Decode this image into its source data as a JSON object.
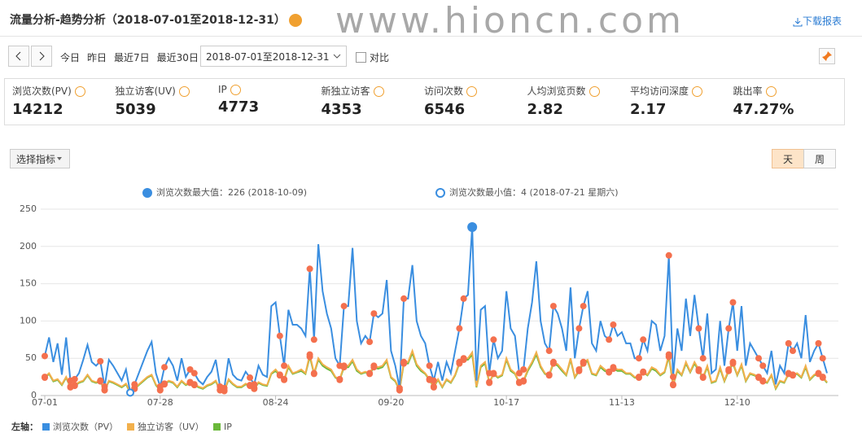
{
  "header": {
    "title": "流量分析-趋势分析（2018-07-01至2018-12-31）",
    "watermark": "www.hioncn.com",
    "download": "下载报表"
  },
  "toolbar": {
    "quick_ranges": [
      "今日",
      "昨日",
      "最近7日",
      "最近30日"
    ],
    "date_range": "2018-07-01至2018-12-31",
    "compare": "对比"
  },
  "metrics": [
    {
      "label": "浏览次数(PV)",
      "value": "14212"
    },
    {
      "label": "独立访客(UV)",
      "value": "5039"
    },
    {
      "label": "IP",
      "value": "4773"
    },
    {
      "label": "新独立访客",
      "value": "4353"
    },
    {
      "label": "访问次数",
      "value": "6546"
    },
    {
      "label": "人均浏览页数",
      "value": "2.82"
    },
    {
      "label": "平均访问深度",
      "value": "2.17"
    },
    {
      "label": "跳出率",
      "value": "47.27%"
    }
  ],
  "chart_controls": {
    "select_metric": "选择指标",
    "granularity": [
      "天",
      "周"
    ]
  },
  "chart_data": {
    "type": "line",
    "annotations": [
      "浏览次数最大值：226 (2018-10-09)",
      "浏览次数最小值：4 (2018-07-21 星期六)"
    ],
    "legend_prefix": "左轴：",
    "categories": [
      "07-01",
      null,
      null,
      null,
      null,
      null,
      null,
      null,
      null,
      null,
      null,
      null,
      null,
      null,
      null,
      null,
      null,
      null,
      null,
      null,
      null,
      null,
      null,
      null,
      null,
      null,
      null,
      "07-28",
      null,
      null,
      null,
      null,
      null,
      null,
      null,
      null,
      null,
      null,
      null,
      null,
      null,
      null,
      null,
      null,
      null,
      null,
      null,
      null,
      null,
      null,
      null,
      null,
      null,
      null,
      "08-24",
      null,
      null,
      null,
      null,
      null,
      null,
      null,
      null,
      null,
      null,
      null,
      null,
      null,
      null,
      null,
      null,
      null,
      null,
      null,
      null,
      null,
      null,
      null,
      null,
      null,
      null,
      "09-20",
      null,
      null,
      null,
      null,
      null,
      null,
      null,
      null,
      null,
      null,
      null,
      null,
      null,
      null,
      null,
      null,
      null,
      null,
      null,
      null,
      null,
      null,
      null,
      null,
      null,
      null,
      "10-17",
      null,
      null,
      null,
      null,
      null,
      null,
      null,
      null,
      null,
      null,
      null,
      null,
      null,
      null,
      null,
      null,
      null,
      null,
      null,
      null,
      null,
      null,
      null,
      null,
      null,
      null,
      "11-13",
      null,
      null,
      null,
      null,
      null,
      null,
      null,
      null,
      null,
      null,
      null,
      null,
      null,
      null,
      null,
      null,
      null,
      null,
      null,
      null,
      null,
      null,
      null,
      null,
      null,
      null,
      "12-10",
      null,
      null,
      null,
      null,
      null,
      null,
      null,
      null,
      null,
      null,
      null,
      null,
      null,
      null,
      null,
      null,
      null,
      null,
      null,
      null,
      null
    ],
    "series": [
      {
        "name": "浏览次数（PV）",
        "color": "#3a8ee0",
        "values": [
          53,
          78,
          45,
          70,
          28,
          78,
          20,
          22,
          30,
          48,
          68,
          45,
          40,
          46,
          12,
          48,
          40,
          30,
          20,
          35,
          4,
          15,
          30,
          45,
          60,
          72,
          30,
          12,
          38,
          50,
          40,
          20,
          50,
          25,
          35,
          30,
          20,
          15,
          25,
          32,
          48,
          12,
          10,
          50,
          28,
          22,
          20,
          32,
          24,
          15,
          40,
          28,
          25,
          120,
          125,
          80,
          40,
          115,
          95,
          95,
          90,
          80,
          170,
          75,
          203,
          140,
          110,
          90,
          50,
          40,
          120,
          120,
          198,
          100,
          70,
          80,
          72,
          110,
          105,
          110,
          155,
          60,
          40,
          10,
          130,
          130,
          175,
          100,
          80,
          70,
          40,
          20,
          45,
          20,
          45,
          30,
          60,
          90,
          130,
          135,
          226,
          20,
          115,
          120,
          30,
          75,
          50,
          60,
          140,
          90,
          80,
          30,
          35,
          90,
          125,
          180,
          100,
          70,
          60,
          120,
          110,
          90,
          60,
          145,
          50,
          90,
          120,
          140,
          70,
          60,
          100,
          80,
          75,
          95,
          80,
          85,
          70,
          70,
          50,
          50,
          75,
          60,
          100,
          95,
          60,
          80,
          188,
          25,
          90,
          60,
          130,
          80,
          135,
          90,
          50,
          110,
          30,
          35,
          100,
          40,
          90,
          125,
          60,
          120,
          40,
          70,
          60,
          50,
          40,
          30,
          60,
          15,
          40,
          30,
          70,
          60,
          70,
          50,
          108,
          45,
          60,
          70,
          50,
          30
        ]
      },
      {
        "name": "独立访客（UV）",
        "color": "#f2b04c",
        "values": [
          25,
          30,
          20,
          22,
          15,
          25,
          12,
          14,
          18,
          20,
          28,
          20,
          18,
          20,
          8,
          20,
          18,
          15,
          12,
          16,
          5,
          10,
          15,
          20,
          25,
          28,
          15,
          8,
          16,
          20,
          18,
          12,
          20,
          15,
          18,
          15,
          12,
          10,
          14,
          16,
          20,
          8,
          7,
          22,
          16,
          12,
          12,
          16,
          14,
          10,
          18,
          15,
          14,
          30,
          35,
          28,
          22,
          40,
          30,
          32,
          35,
          30,
          55,
          30,
          50,
          42,
          38,
          35,
          25,
          22,
          40,
          40,
          48,
          35,
          30,
          32,
          30,
          40,
          38,
          40,
          48,
          25,
          20,
          8,
          45,
          45,
          60,
          42,
          35,
          30,
          22,
          12,
          22,
          12,
          22,
          18,
          28,
          45,
          50,
          50,
          58,
          12,
          40,
          45,
          18,
          30,
          25,
          28,
          50,
          35,
          30,
          18,
          20,
          35,
          45,
          58,
          40,
          30,
          28,
          45,
          42,
          35,
          28,
          50,
          25,
          35,
          45,
          48,
          30,
          28,
          40,
          35,
          32,
          38,
          35,
          35,
          30,
          30,
          25,
          25,
          32,
          28,
          38,
          35,
          28,
          32,
          55,
          15,
          35,
          28,
          45,
          32,
          45,
          35,
          25,
          40,
          18,
          20,
          38,
          20,
          35,
          45,
          28,
          42,
          20,
          30,
          28,
          25,
          20,
          18,
          28,
          10,
          20,
          18,
          30,
          28,
          30,
          25,
          40,
          22,
          28,
          30,
          25,
          18
        ]
      },
      {
        "name": "IP",
        "color": "#6ab83a",
        "values": [
          24,
          29,
          19,
          21,
          14,
          24,
          11,
          13,
          17,
          19,
          27,
          19,
          17,
          19,
          7,
          19,
          17,
          14,
          11,
          15,
          4,
          9,
          14,
          19,
          24,
          27,
          14,
          7,
          15,
          19,
          17,
          11,
          19,
          14,
          17,
          14,
          11,
          9,
          13,
          15,
          19,
          7,
          6,
          21,
          15,
          11,
          11,
          15,
          13,
          9,
          17,
          14,
          13,
          29,
          33,
          27,
          21,
          38,
          29,
          31,
          33,
          29,
          52,
          29,
          48,
          40,
          36,
          33,
          24,
          21,
          38,
          38,
          46,
          33,
          29,
          31,
          29,
          38,
          36,
          38,
          46,
          24,
          19,
          7,
          43,
          43,
          57,
          40,
          33,
          29,
          21,
          11,
          21,
          11,
          21,
          17,
          27,
          43,
          48,
          48,
          55,
          11,
          38,
          43,
          17,
          29,
          24,
          27,
          48,
          33,
          29,
          17,
          19,
          33,
          43,
          55,
          38,
          29,
          27,
          43,
          40,
          33,
          27,
          48,
          24,
          33,
          43,
          46,
          29,
          27,
          38,
          33,
          31,
          36,
          33,
          33,
          29,
          29,
          24,
          24,
          31,
          27,
          36,
          33,
          27,
          31,
          52,
          14,
          33,
          27,
          43,
          31,
          43,
          33,
          24,
          38,
          17,
          19,
          36,
          19,
          33,
          43,
          27,
          40,
          19,
          29,
          27,
          24,
          19,
          17,
          27,
          9,
          19,
          17,
          29,
          27,
          29,
          24,
          38,
          21,
          27,
          29,
          24,
          17
        ]
      }
    ],
    "ylim": [
      0,
      250
    ],
    "yticks": [
      0,
      50,
      100,
      150,
      200,
      250
    ],
    "grid": true,
    "weekend_marker_color": "#f4704e"
  }
}
